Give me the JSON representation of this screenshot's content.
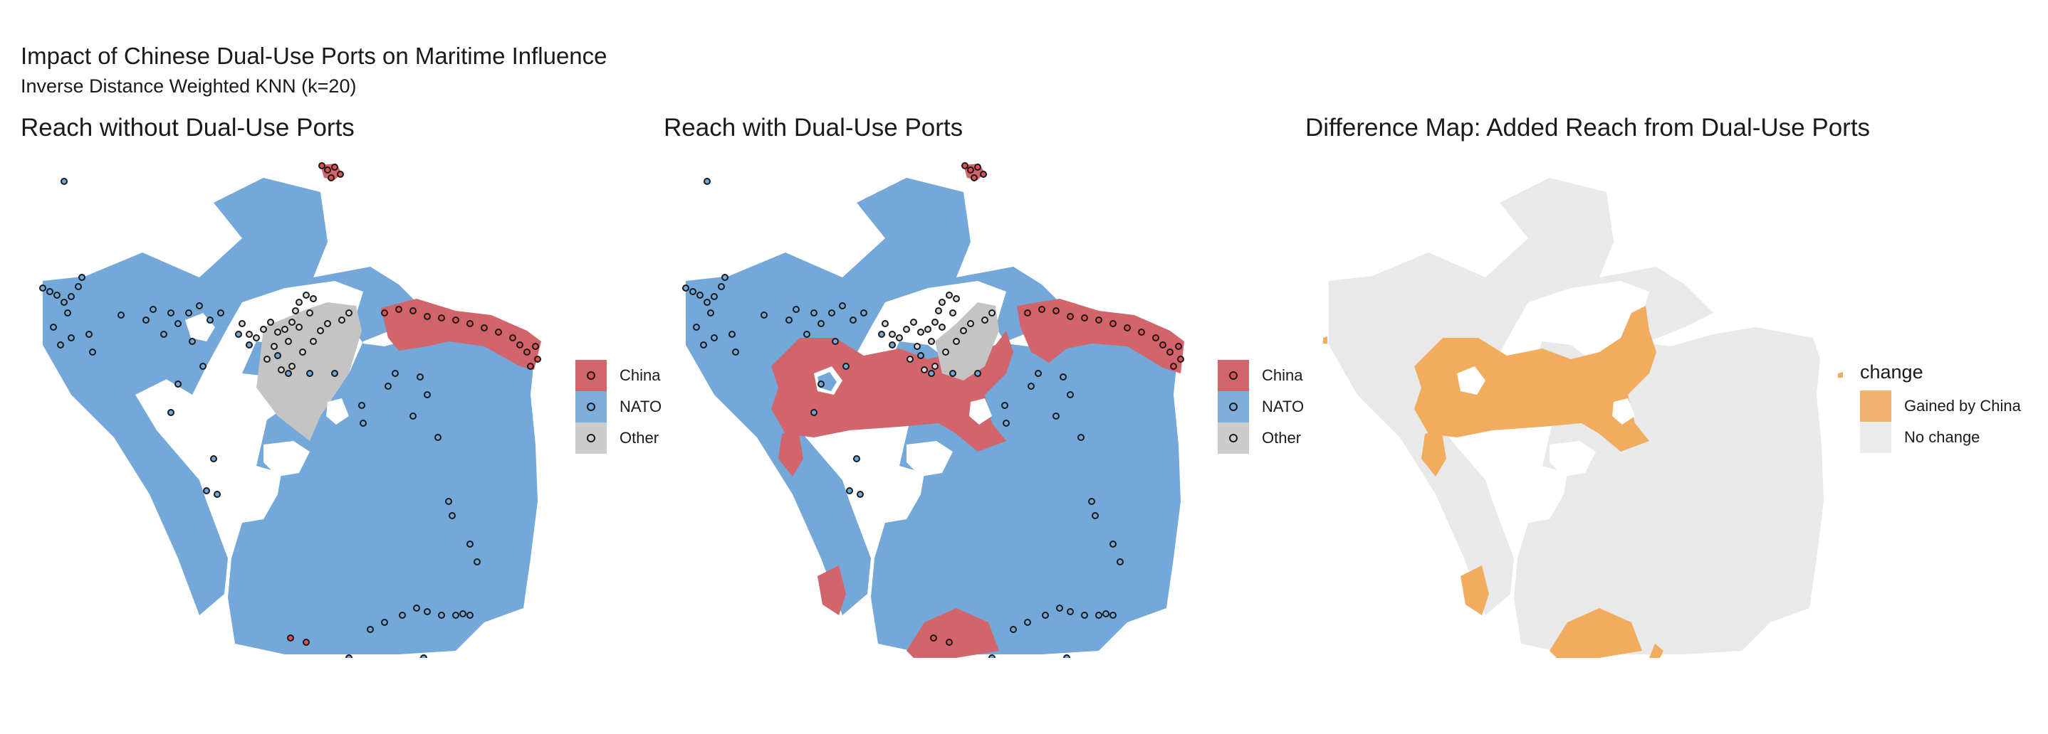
{
  "title": "Impact of Chinese Dual-Use Ports on Maritime Influence",
  "subtitle": "Inverse Distance Weighted KNN (k=20)",
  "panels": [
    {
      "title": "Reach without Dual-Use Ports"
    },
    {
      "title": "Reach with Dual-Use Ports"
    },
    {
      "title": "Difference Map: Added Reach from Dual-Use Ports"
    }
  ],
  "legend_bloc": {
    "items": [
      {
        "label": "China",
        "fill": "#d1666d",
        "dot": "#e05050"
      },
      {
        "label": "NATO",
        "fill": "#80aedb",
        "dot": "#6fa8dc"
      },
      {
        "label": "Other",
        "fill": "#cccccc",
        "dot": "#d0d0d0"
      }
    ]
  },
  "legend_change": {
    "title": "change",
    "items": [
      {
        "label": "Gained by China",
        "fill": "#f2b26f"
      },
      {
        "label": "No change",
        "fill": "#ebebeb"
      }
    ]
  },
  "colors": {
    "nato": "#74a8d9",
    "china": "#d2646c",
    "other": "#c4c4c4",
    "gained": "#f2ac5f",
    "nochange": "#e9e9e9",
    "port_outline": "#1a1a1a"
  }
}
